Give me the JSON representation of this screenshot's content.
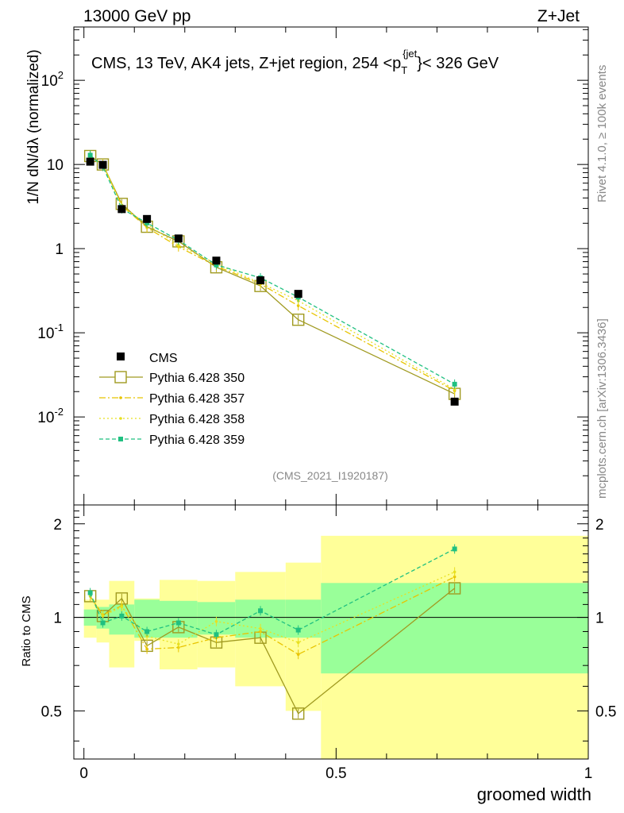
{
  "header": {
    "left": "13000 GeV pp",
    "right": "Z+Jet"
  },
  "chart_data": {
    "type": "line",
    "title": "CMS, 13 TeV, AK4 jets, Z+jet region, 254 <p",
    "title_sub": "T",
    "title_sup": "{jet",
    "title_suffix": "}< 326 GeV",
    "xlabel": "groomed width",
    "ylabel_main": "1/N dN/dλ (normalized)",
    "ylabel_ratio": "Ratio to CMS",
    "xlim": [
      -0.02,
      1.0
    ],
    "ylim_main": [
      0.0009,
      430
    ],
    "ylim_ratio": [
      0.35,
      2.3
    ],
    "x_ticks": [
      "0",
      "0.5",
      "1"
    ],
    "main_y_ticks": [
      {
        "base": "10",
        "exp": "-2"
      },
      {
        "base": "10",
        "exp": "-1"
      },
      {
        "base": "1",
        "exp": ""
      },
      {
        "base": "10",
        "exp": ""
      },
      {
        "base": "10",
        "exp": "2"
      }
    ],
    "ratio_y_ticks": [
      "0.5",
      "1",
      "2"
    ],
    "analysis_id": "(CMS_2021_I1920187)",
    "side_label_top": "Rivet 4.1.0, ≥ 100k events",
    "side_label_bottom": "mcplots.cern.ch [arXiv:1306.3436]",
    "bins": [
      {
        "lo": 0.0,
        "hi": 0.025
      },
      {
        "lo": 0.025,
        "hi": 0.05
      },
      {
        "lo": 0.05,
        "hi": 0.1
      },
      {
        "lo": 0.1,
        "hi": 0.15
      },
      {
        "lo": 0.15,
        "hi": 0.225
      },
      {
        "lo": 0.225,
        "hi": 0.3
      },
      {
        "lo": 0.3,
        "hi": 0.4
      },
      {
        "lo": 0.4,
        "hi": 0.47
      },
      {
        "lo": 0.47,
        "hi": 1.0
      }
    ],
    "x": [
      0.0125,
      0.0375,
      0.075,
      0.125,
      0.1875,
      0.2625,
      0.35,
      0.425,
      0.735
    ],
    "data": {
      "name": "CMS",
      "values": [
        10.8,
        9.9,
        2.95,
        2.25,
        1.32,
        0.72,
        0.42,
        0.29,
        0.0152
      ],
      "ratio_band_green": [
        [
          0.94,
          1.06
        ],
        [
          0.92,
          1.08
        ],
        [
          0.88,
          1.1
        ],
        [
          0.86,
          1.14
        ],
        [
          0.86,
          1.13
        ],
        [
          0.88,
          1.12
        ],
        [
          0.86,
          1.14
        ],
        [
          0.86,
          1.14
        ],
        [
          0.66,
          1.29
        ]
      ],
      "ratio_band_yellow": [
        [
          0.86,
          1.14
        ],
        [
          0.83,
          1.14
        ],
        [
          0.69,
          1.31
        ],
        [
          0.84,
          1.15
        ],
        [
          0.68,
          1.32
        ],
        [
          0.69,
          1.31
        ],
        [
          0.6,
          1.4
        ],
        [
          0.5,
          1.5
        ],
        [
          0.33,
          1.83
        ]
      ]
    },
    "series": [
      {
        "name": "Pythia 6.428 350",
        "color": "#a09a20",
        "dash": "",
        "marker": "open-square",
        "values": [
          12.6,
          10.0,
          3.4,
          1.82,
          1.22,
          0.6,
          0.36,
          0.143,
          0.0188
        ],
        "ratio": [
          1.17,
          1.01,
          1.15,
          0.81,
          0.93,
          0.83,
          0.86,
          0.49,
          1.24
        ]
      },
      {
        "name": "Pythia 6.428 357",
        "color": "#e8c400",
        "dash": "8,3,2,3",
        "marker": "dot",
        "values": [
          12.4,
          10.1,
          3.25,
          1.78,
          1.05,
          0.62,
          0.38,
          0.21,
          0.0205
        ],
        "ratio": [
          1.17,
          1.02,
          1.09,
          0.79,
          0.8,
          0.86,
          0.9,
          0.76,
          1.35
        ]
      },
      {
        "name": "Pythia 6.428 358",
        "color": "#e8e020",
        "dash": "2,3",
        "marker": "dot",
        "values": [
          12.5,
          10.0,
          3.2,
          1.95,
          1.1,
          0.66,
          0.39,
          0.24,
          0.0213
        ],
        "ratio": [
          1.17,
          1.01,
          1.08,
          0.87,
          0.82,
          0.97,
          0.92,
          0.83,
          1.4
        ]
      },
      {
        "name": "Pythia 6.428 359",
        "color": "#20c080",
        "dash": "5,3",
        "marker": "filled-square",
        "values": [
          12.9,
          9.5,
          2.98,
          2.02,
          1.26,
          0.64,
          0.45,
          0.265,
          0.0245
        ],
        "ratio": [
          1.2,
          0.96,
          1.01,
          0.9,
          0.96,
          0.88,
          1.05,
          0.91,
          1.66
        ]
      }
    ]
  }
}
